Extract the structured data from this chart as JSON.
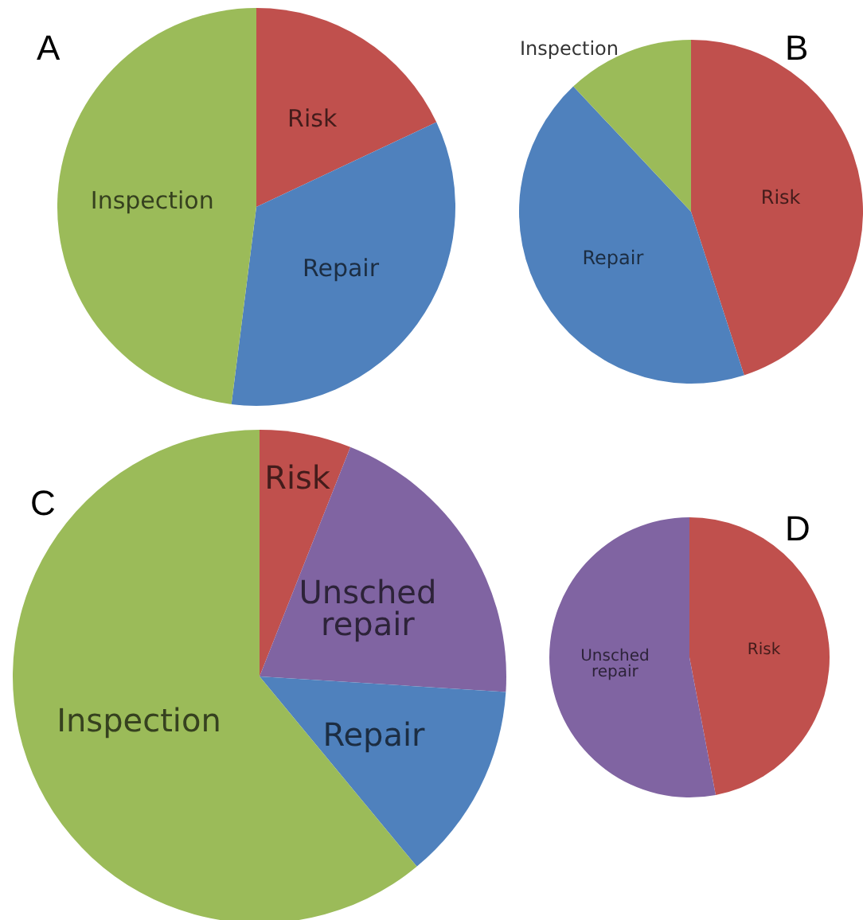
{
  "chart_data": [
    {
      "type": "pie",
      "title": "A",
      "categories": [
        "Risk",
        "Repair",
        "Inspection"
      ],
      "values": [
        18,
        34,
        48
      ],
      "colors": [
        "#c0504d",
        "#4f81bd",
        "#9bbb59"
      ]
    },
    {
      "type": "pie",
      "title": "B",
      "categories": [
        "Risk",
        "Repair",
        "Inspection"
      ],
      "values": [
        45,
        43,
        12
      ],
      "colors": [
        "#c0504d",
        "#4f81bd",
        "#9bbb59"
      ]
    },
    {
      "type": "pie",
      "title": "C",
      "categories": [
        "Risk",
        "Unsched repair",
        "Repair",
        "Inspection"
      ],
      "values": [
        6,
        20,
        13,
        61
      ],
      "colors": [
        "#c0504d",
        "#8064a2",
        "#4f81bd",
        "#9bbb59"
      ]
    },
    {
      "type": "pie",
      "title": "D",
      "categories": [
        "Risk",
        "Unsched repair"
      ],
      "values": [
        47,
        53
      ],
      "colors": [
        "#c0504d",
        "#8064a2"
      ]
    }
  ]
}
